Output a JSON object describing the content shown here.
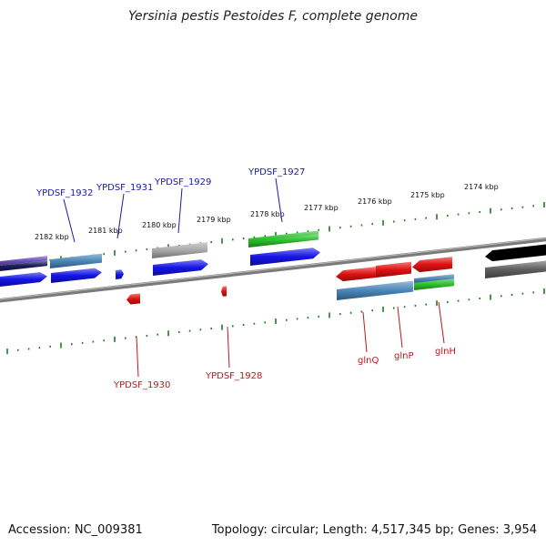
{
  "title": "Yersinia pestis Pestoides F, complete genome",
  "footer": {
    "accession": "Accession: NC_009381",
    "summary": "Topology: circular; Length: 4,517,345 bp; Genes: 3,954"
  },
  "scale_labels": [
    "2182 kbp",
    "2181 kbp",
    "2180 kbp",
    "2179 kbp",
    "2178 kbp",
    "2177 kbp",
    "2176 kbp",
    "2175 kbp",
    "2174 kbp"
  ],
  "gene_labels_top": [
    "YPDSF_1932",
    "YPDSF_1931",
    "YPDSF_1929",
    "YPDSF_1927"
  ],
  "gene_labels_bottom": [
    "YPDSF_1930",
    "YPDSF_1928",
    "glnQ",
    "glnP",
    "glnH"
  ],
  "colors": {
    "top_label": "#1a1aa8",
    "bottom_label": "#c0161c",
    "tick": "#1e7a1e",
    "backbone": "#7a7a7a",
    "cds_blue": "#1414e6",
    "cds_red": "#e11111",
    "cog_lightblue": "#4a86b8",
    "cog_navy": "#1c1c5a",
    "cog_purple": "#6a4fc0",
    "cog_gray": "#a8a8a8",
    "cog_green": "#2cbf2c",
    "cog_darkgray": "#5e5e5e"
  }
}
